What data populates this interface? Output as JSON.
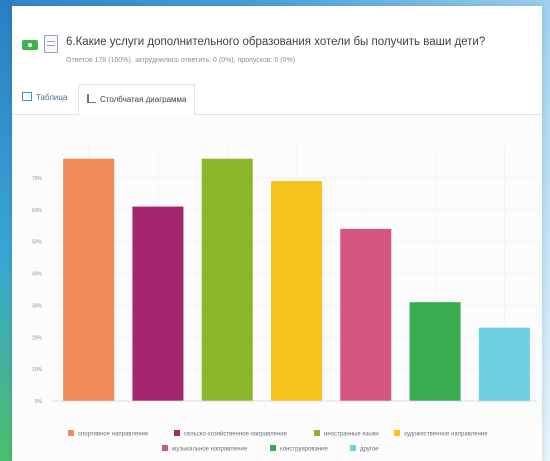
{
  "question": {
    "title": "6.Какие услуги дополнительного образования хотели бы получить ваши дети?",
    "stats": "Ответов 178 (100%), затруднились ответить: 0 (0%), пропусков: 0 (0%)"
  },
  "tabs": [
    {
      "label": "Таблица"
    },
    {
      "label": "Столбчатая диаграмма"
    }
  ],
  "colors": {
    "accent": "#3fb24f"
  },
  "chart_data": {
    "type": "bar",
    "categories": [
      "спортивное направление",
      "сельско-хозяйственное направление",
      "иностранные языки",
      "художественное направление",
      "музыкальное направление",
      "конструирование",
      "другое"
    ],
    "values": [
      76,
      61,
      76,
      69,
      54,
      31,
      23
    ],
    "colors": [
      "#ef8a5b",
      "#a4266f",
      "#8bb52b",
      "#f7c21b",
      "#d4567f",
      "#3aab4f",
      "#6fcfe0"
    ],
    "yticks": [
      "70%",
      "60%",
      "50%",
      "40%",
      "30%",
      "20%",
      "10%",
      "0%"
    ],
    "ylim": [
      0,
      80
    ],
    "grid": true,
    "legend": "bottom"
  }
}
